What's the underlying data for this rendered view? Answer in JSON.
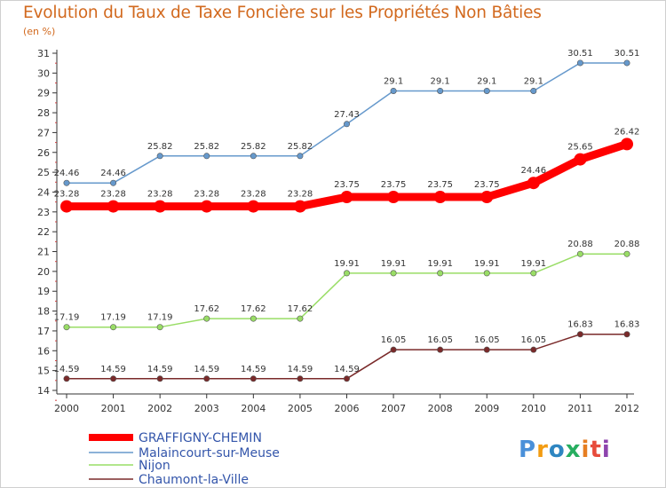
{
  "title": "Evolution du Taux de Taxe Foncière sur les Propriétés Non Bâties",
  "unit_label": "(en %)",
  "logo_text": "Proxiti",
  "chart_data": {
    "type": "line",
    "title": "Evolution du Taux de Taxe Foncière sur les Propriétés Non Bâties",
    "ylabel": "(en %)",
    "xlabel": "",
    "x": [
      "2000",
      "2001",
      "2002",
      "2003",
      "2004",
      "2005",
      "2006",
      "2007",
      "2008",
      "2009",
      "2010",
      "2011",
      "2012"
    ],
    "ylim": [
      14,
      31
    ],
    "yticks": [
      14,
      15,
      16,
      17,
      18,
      19,
      20,
      21,
      22,
      23,
      24,
      25,
      26,
      27,
      28,
      29,
      30,
      31
    ],
    "grid": false,
    "legend_position": "bottom-left",
    "series": [
      {
        "name": "GRAFFIGNY-CHEMIN",
        "color": "#ff0000",
        "emphasis": true,
        "values": [
          23.28,
          23.28,
          23.28,
          23.28,
          23.28,
          23.28,
          23.75,
          23.75,
          23.75,
          23.75,
          24.46,
          25.65,
          26.42
        ],
        "labels": [
          "23.28",
          "23.28",
          "23.28",
          "23.28",
          "23.28",
          "23.28",
          "23.75",
          "23.75",
          "23.75",
          "23.75",
          "24.46",
          "25.65",
          "26.42"
        ]
      },
      {
        "name": "Malaincourt-sur-Meuse",
        "color": "#6699cc",
        "emphasis": false,
        "values": [
          24.46,
          24.46,
          25.82,
          25.82,
          25.82,
          25.82,
          27.43,
          29.1,
          29.1,
          29.1,
          29.1,
          30.51,
          30.51
        ],
        "labels": [
          "24.46",
          "24.46",
          "25.82",
          "25.82",
          "25.82",
          "25.82",
          "27.43",
          "29.1",
          "29.1",
          "29.1",
          "29.1",
          "30.51",
          "30.51"
        ]
      },
      {
        "name": "Nijon",
        "color": "#99dd66",
        "emphasis": false,
        "values": [
          17.19,
          17.19,
          17.19,
          17.62,
          17.62,
          17.62,
          19.91,
          19.91,
          19.91,
          19.91,
          19.91,
          20.88,
          20.88
        ],
        "labels": [
          "17.19",
          "17.19",
          "17.19",
          "17.62",
          "17.62",
          "17.62",
          "19.91",
          "19.91",
          "19.91",
          "19.91",
          "19.91",
          "20.88",
          "20.88"
        ]
      },
      {
        "name": "Chaumont-la-Ville",
        "color": "#7a2a2a",
        "emphasis": false,
        "values": [
          14.59,
          14.59,
          14.59,
          14.59,
          14.59,
          14.59,
          14.59,
          16.05,
          16.05,
          16.05,
          16.05,
          16.83,
          16.83
        ],
        "labels": [
          "14.59",
          "14.59",
          "14.59",
          "14.59",
          "14.59",
          "14.59",
          "14.59",
          "16.05",
          "16.05",
          "16.05",
          "16.05",
          "16.83",
          "16.83"
        ]
      }
    ]
  }
}
